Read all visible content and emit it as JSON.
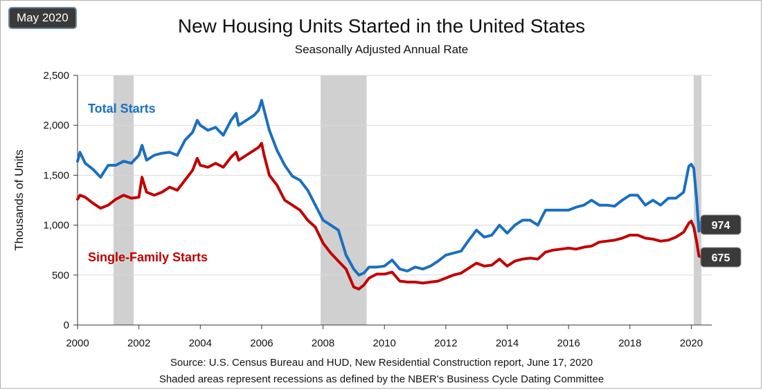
{
  "badge": "May 2020",
  "chart_data": {
    "type": "line",
    "title": "New Housing Units Started in the United States",
    "subtitle": "Seasonally Adjusted Annual Rate",
    "ylabel": "Thousands of Units",
    "xlabel": "",
    "ylim": [
      0,
      2500
    ],
    "xlim": [
      2000,
      2020.42
    ],
    "yticks": [
      "0",
      "500",
      "1,000",
      "1,500",
      "2,000",
      "2,500"
    ],
    "yticks_values": [
      0,
      500,
      1000,
      1500,
      2000,
      2500
    ],
    "xticks": [
      "2000",
      "2002",
      "2004",
      "2006",
      "2008",
      "2010",
      "2012",
      "2014",
      "2016",
      "2018",
      "2020"
    ],
    "xticks_values": [
      2000,
      2002,
      2004,
      2006,
      2008,
      2010,
      2012,
      2014,
      2016,
      2018,
      2020
    ],
    "grid": "horizontal",
    "recessions": [
      {
        "start": 2001.17,
        "end": 2001.83
      },
      {
        "start": 2007.92,
        "end": 2009.42
      },
      {
        "start": 2020.08,
        "end": 2020.33
      }
    ],
    "series": [
      {
        "name": "Total Starts",
        "color": "#1a6fc0",
        "end_label": "974",
        "points": [
          [
            2000.0,
            1640
          ],
          [
            2000.08,
            1730
          ],
          [
            2000.25,
            1620
          ],
          [
            2000.5,
            1560
          ],
          [
            2000.75,
            1480
          ],
          [
            2001.0,
            1600
          ],
          [
            2001.25,
            1600
          ],
          [
            2001.5,
            1640
          ],
          [
            2001.75,
            1620
          ],
          [
            2002.0,
            1700
          ],
          [
            2002.1,
            1800
          ],
          [
            2002.25,
            1650
          ],
          [
            2002.5,
            1700
          ],
          [
            2002.75,
            1720
          ],
          [
            2003.0,
            1730
          ],
          [
            2003.25,
            1700
          ],
          [
            2003.5,
            1850
          ],
          [
            2003.75,
            1930
          ],
          [
            2003.9,
            2050
          ],
          [
            2004.0,
            2000
          ],
          [
            2004.25,
            1950
          ],
          [
            2004.5,
            1980
          ],
          [
            2004.75,
            1900
          ],
          [
            2005.0,
            2050
          ],
          [
            2005.17,
            2120
          ],
          [
            2005.25,
            2000
          ],
          [
            2005.5,
            2050
          ],
          [
            2005.75,
            2100
          ],
          [
            2005.9,
            2150
          ],
          [
            2006.0,
            2250
          ],
          [
            2006.08,
            2150
          ],
          [
            2006.25,
            1950
          ],
          [
            2006.5,
            1750
          ],
          [
            2006.75,
            1600
          ],
          [
            2007.0,
            1490
          ],
          [
            2007.25,
            1450
          ],
          [
            2007.5,
            1350
          ],
          [
            2007.75,
            1200
          ],
          [
            2008.0,
            1050
          ],
          [
            2008.25,
            1000
          ],
          [
            2008.5,
            950
          ],
          [
            2008.75,
            700
          ],
          [
            2009.0,
            560
          ],
          [
            2009.17,
            500
          ],
          [
            2009.33,
            520
          ],
          [
            2009.5,
            580
          ],
          [
            2009.75,
            580
          ],
          [
            2010.0,
            590
          ],
          [
            2010.25,
            650
          ],
          [
            2010.5,
            560
          ],
          [
            2010.75,
            540
          ],
          [
            2011.0,
            580
          ],
          [
            2011.25,
            560
          ],
          [
            2011.5,
            590
          ],
          [
            2011.75,
            640
          ],
          [
            2012.0,
            700
          ],
          [
            2012.25,
            720
          ],
          [
            2012.5,
            740
          ],
          [
            2012.75,
            850
          ],
          [
            2013.0,
            950
          ],
          [
            2013.25,
            880
          ],
          [
            2013.5,
            900
          ],
          [
            2013.75,
            1000
          ],
          [
            2014.0,
            920
          ],
          [
            2014.25,
            1000
          ],
          [
            2014.5,
            1050
          ],
          [
            2014.75,
            1050
          ],
          [
            2015.0,
            1000
          ],
          [
            2015.25,
            1150
          ],
          [
            2015.5,
            1150
          ],
          [
            2015.75,
            1150
          ],
          [
            2016.0,
            1150
          ],
          [
            2016.25,
            1180
          ],
          [
            2016.5,
            1200
          ],
          [
            2016.75,
            1250
          ],
          [
            2017.0,
            1200
          ],
          [
            2017.25,
            1200
          ],
          [
            2017.5,
            1190
          ],
          [
            2017.75,
            1250
          ],
          [
            2018.0,
            1300
          ],
          [
            2018.25,
            1300
          ],
          [
            2018.5,
            1200
          ],
          [
            2018.75,
            1250
          ],
          [
            2019.0,
            1200
          ],
          [
            2019.25,
            1270
          ],
          [
            2019.5,
            1270
          ],
          [
            2019.75,
            1330
          ],
          [
            2019.92,
            1590
          ],
          [
            2020.0,
            1610
          ],
          [
            2020.08,
            1570
          ],
          [
            2020.17,
            1270
          ],
          [
            2020.25,
            940
          ],
          [
            2020.33,
            1040
          ],
          [
            2020.42,
            974
          ]
        ]
      },
      {
        "name": "Single-Family Starts",
        "color": "#c00000",
        "end_label": "675",
        "points": [
          [
            2000.0,
            1260
          ],
          [
            2000.08,
            1300
          ],
          [
            2000.25,
            1280
          ],
          [
            2000.5,
            1220
          ],
          [
            2000.75,
            1170
          ],
          [
            2001.0,
            1200
          ],
          [
            2001.25,
            1260
          ],
          [
            2001.5,
            1300
          ],
          [
            2001.75,
            1270
          ],
          [
            2002.0,
            1280
          ],
          [
            2002.1,
            1480
          ],
          [
            2002.25,
            1330
          ],
          [
            2002.5,
            1300
          ],
          [
            2002.75,
            1330
          ],
          [
            2003.0,
            1380
          ],
          [
            2003.25,
            1350
          ],
          [
            2003.5,
            1450
          ],
          [
            2003.75,
            1550
          ],
          [
            2003.9,
            1670
          ],
          [
            2004.0,
            1600
          ],
          [
            2004.25,
            1580
          ],
          [
            2004.5,
            1620
          ],
          [
            2004.75,
            1580
          ],
          [
            2005.0,
            1680
          ],
          [
            2005.17,
            1730
          ],
          [
            2005.25,
            1650
          ],
          [
            2005.5,
            1700
          ],
          [
            2005.75,
            1750
          ],
          [
            2005.9,
            1780
          ],
          [
            2006.0,
            1820
          ],
          [
            2006.08,
            1700
          ],
          [
            2006.25,
            1500
          ],
          [
            2006.5,
            1400
          ],
          [
            2006.75,
            1250
          ],
          [
            2007.0,
            1200
          ],
          [
            2007.25,
            1150
          ],
          [
            2007.5,
            1050
          ],
          [
            2007.75,
            980
          ],
          [
            2008.0,
            820
          ],
          [
            2008.25,
            720
          ],
          [
            2008.5,
            640
          ],
          [
            2008.75,
            560
          ],
          [
            2009.0,
            380
          ],
          [
            2009.17,
            360
          ],
          [
            2009.33,
            400
          ],
          [
            2009.5,
            470
          ],
          [
            2009.75,
            510
          ],
          [
            2010.0,
            510
          ],
          [
            2010.25,
            530
          ],
          [
            2010.5,
            440
          ],
          [
            2010.75,
            430
          ],
          [
            2011.0,
            430
          ],
          [
            2011.25,
            420
          ],
          [
            2011.5,
            430
          ],
          [
            2011.75,
            440
          ],
          [
            2012.0,
            470
          ],
          [
            2012.25,
            500
          ],
          [
            2012.5,
            520
          ],
          [
            2012.75,
            570
          ],
          [
            2013.0,
            620
          ],
          [
            2013.25,
            590
          ],
          [
            2013.5,
            600
          ],
          [
            2013.75,
            660
          ],
          [
            2014.0,
            590
          ],
          [
            2014.25,
            640
          ],
          [
            2014.5,
            660
          ],
          [
            2014.75,
            670
          ],
          [
            2015.0,
            660
          ],
          [
            2015.25,
            730
          ],
          [
            2015.5,
            750
          ],
          [
            2015.75,
            760
          ],
          [
            2016.0,
            770
          ],
          [
            2016.25,
            760
          ],
          [
            2016.5,
            780
          ],
          [
            2016.75,
            790
          ],
          [
            2017.0,
            830
          ],
          [
            2017.25,
            840
          ],
          [
            2017.5,
            850
          ],
          [
            2017.75,
            870
          ],
          [
            2018.0,
            900
          ],
          [
            2018.25,
            900
          ],
          [
            2018.5,
            870
          ],
          [
            2018.75,
            860
          ],
          [
            2019.0,
            840
          ],
          [
            2019.25,
            850
          ],
          [
            2019.5,
            880
          ],
          [
            2019.75,
            930
          ],
          [
            2019.92,
            1020
          ],
          [
            2020.0,
            1040
          ],
          [
            2020.08,
            980
          ],
          [
            2020.17,
            840
          ],
          [
            2020.25,
            690
          ],
          [
            2020.33,
            680
          ],
          [
            2020.42,
            675
          ]
        ]
      }
    ]
  },
  "source_line1": "Source:  U.S. Census Bureau and HUD, New Residential Construction report, June 17, 2020",
  "source_line2": "Shaded areas represent recessions as defined by the NBER's Business Cycle Dating Committee"
}
